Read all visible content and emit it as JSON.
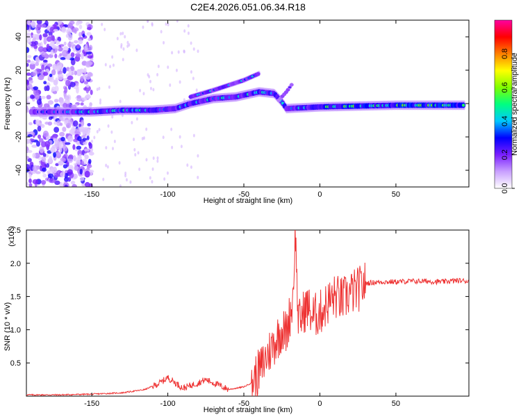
{
  "page_title": "C2E4.2026.051.06.34.R18",
  "chart_data": [
    {
      "type": "heatmap",
      "title": "C2E4.2026.051.06.34.R18",
      "xlabel": "Height of straight line (km)",
      "ylabel": "Frequency (Hz)",
      "xlim": [
        -193,
        98
      ],
      "ylim": [
        -50,
        50
      ],
      "xticks": [
        -150,
        -100,
        -50,
        0,
        50
      ],
      "yticks": [
        -40,
        -20,
        0,
        20,
        40
      ],
      "colorbar": {
        "label": "Normalized spectral amplitude",
        "range": [
          0,
          1
        ],
        "ticks": [
          0.0,
          0.2,
          0.4,
          0.6,
          0.8
        ],
        "tick_labels": [
          "0.0",
          "0.2",
          "0.4",
          "0.6",
          "0.8"
        ],
        "colors": [
          "#ffffff",
          "#c9a0ff",
          "#7a1fff",
          "#0000ff",
          "#00c8ff",
          "#00ff80",
          "#80ff00",
          "#ffff00",
          "#ff8000",
          "#ff0000",
          "#ff00a0"
        ]
      },
      "ridge": [
        {
          "x": -190,
          "y": -5
        },
        {
          "x": -170,
          "y": -5
        },
        {
          "x": -150,
          "y": -5
        },
        {
          "x": -130,
          "y": -4
        },
        {
          "x": -110,
          "y": -4
        },
        {
          "x": -95,
          "y": -3
        },
        {
          "x": -85,
          "y": 0
        },
        {
          "x": -70,
          "y": 3
        },
        {
          "x": -55,
          "y": 4
        },
        {
          "x": -40,
          "y": 7
        },
        {
          "x": -30,
          "y": 6
        },
        {
          "x": -25,
          "y": 1
        },
        {
          "x": -22,
          "y": -3
        },
        {
          "x": 0,
          "y": -2
        },
        {
          "x": 50,
          "y": -1
        },
        {
          "x": 95,
          "y": -1
        }
      ],
      "branch": [
        {
          "x": -85,
          "y": 4
        },
        {
          "x": -70,
          "y": 8
        },
        {
          "x": -60,
          "y": 11
        },
        {
          "x": -50,
          "y": 14
        },
        {
          "x": -40,
          "y": 18
        }
      ],
      "hook": [
        {
          "x": -27,
          "y": 2
        },
        {
          "x": -22,
          "y": 7
        },
        {
          "x": -18,
          "y": 12
        }
      ],
      "noise_region_x": [
        -193,
        -150
      ]
    },
    {
      "type": "line",
      "title": "",
      "xlabel": "Height of straight line (km)",
      "ylabel": "SNR (10 * v/v)",
      "y_multiplier_label": "(x10",
      "y_multiplier_exp": "4",
      "xlim": [
        -193,
        98
      ],
      "ylim": [
        0,
        2.5
      ],
      "xticks": [
        -150,
        -100,
        -50,
        0,
        50
      ],
      "yticks": [
        0.5,
        1.0,
        1.5,
        2.0,
        2.5
      ],
      "ytick_labels": [
        "0.5",
        "1.0",
        "1.5",
        "2.0",
        "2.5"
      ],
      "color": "#ee3333",
      "series": [
        {
          "x": [
            -193,
            -170,
            -150,
            -130,
            -115,
            -105,
            -100,
            -95,
            -90,
            -80,
            -75,
            -70,
            -60,
            -50,
            -45,
            -42,
            -38,
            -35,
            -30,
            -25,
            -22,
            -20,
            -18,
            -16,
            -15,
            -14,
            -12,
            -10,
            -8,
            -5,
            0,
            5,
            10,
            15,
            20,
            25,
            30,
            40,
            50,
            60,
            70,
            80,
            90,
            98
          ],
          "y": [
            0.02,
            0.02,
            0.03,
            0.05,
            0.1,
            0.2,
            0.28,
            0.2,
            0.12,
            0.2,
            0.25,
            0.2,
            0.1,
            0.14,
            0.2,
            0.3,
            0.45,
            0.6,
            0.8,
            1.0,
            0.95,
            1.2,
            1.4,
            2.5,
            1.6,
            1.1,
            1.2,
            1.3,
            1.35,
            1.2,
            1.25,
            1.4,
            1.5,
            1.45,
            1.55,
            1.6,
            1.7,
            1.72,
            1.72,
            1.73,
            1.73,
            1.72,
            1.74,
            1.73
          ]
        }
      ]
    }
  ]
}
